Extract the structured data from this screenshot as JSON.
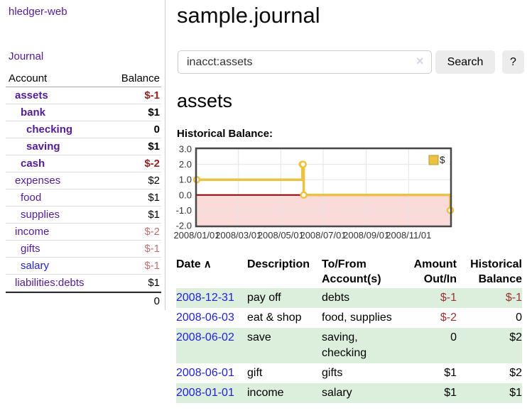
{
  "app": {
    "title": "hledger-web"
  },
  "sidebar": {
    "journal_link": "Journal",
    "table": {
      "account_header": "Account",
      "balance_header": "Balance",
      "rows": [
        {
          "account": "assets",
          "balance": "$-1",
          "depth": 0,
          "bold": true,
          "balance_style": "negative-strong"
        },
        {
          "account": "bank",
          "balance": "$1",
          "depth": 1,
          "bold": true,
          "balance_style": "normal"
        },
        {
          "account": "checking",
          "balance": "0",
          "depth": 2,
          "bold": true,
          "balance_style": "normal"
        },
        {
          "account": "saving",
          "balance": "$1",
          "depth": 2,
          "bold": true,
          "balance_style": "normal"
        },
        {
          "account": "cash",
          "balance": "$-2",
          "depth": 1,
          "bold": true,
          "balance_style": "negative-strong"
        },
        {
          "account": "expenses",
          "balance": "$2",
          "depth": 0,
          "bold": false,
          "balance_style": "normal"
        },
        {
          "account": "food",
          "balance": "$1",
          "depth": 1,
          "bold": false,
          "balance_style": "normal"
        },
        {
          "account": "supplies",
          "balance": "$1",
          "depth": 1,
          "bold": false,
          "balance_style": "normal"
        },
        {
          "account": "income",
          "balance": "$-2",
          "depth": 0,
          "bold": false,
          "balance_style": "negative-muted"
        },
        {
          "account": "gifts",
          "balance": "$-1",
          "depth": 1,
          "bold": false,
          "balance_style": "negative-muted"
        },
        {
          "account": "salary",
          "balance": "$-1",
          "depth": 1,
          "bold": false,
          "balance_style": "negative-muted"
        },
        {
          "account": "liabilities:debts",
          "balance": "$1",
          "depth": 0,
          "bold": false,
          "balance_style": "normal"
        }
      ],
      "total": "0"
    }
  },
  "header": {
    "title": "sample.journal"
  },
  "search": {
    "value": "inacct:assets",
    "clear_icon": "×",
    "button_label": "Search",
    "help_label": "?"
  },
  "account_page": {
    "heading": "assets",
    "chart_label": "Historical Balance:"
  },
  "chart_data": {
    "type": "line",
    "style": "steps",
    "title": "Historical Balance",
    "series": [
      {
        "name": "$",
        "points": [
          [
            "2008-01-01",
            1
          ],
          [
            "2008-06-01",
            2
          ],
          [
            "2008-06-02",
            2
          ],
          [
            "2008-06-03",
            0
          ],
          [
            "2008-12-31",
            -1
          ]
        ]
      }
    ],
    "x_start": "2008-01-01",
    "x_end": "2008-12-31",
    "x_ticks": [
      "2008/01/01",
      "2008/03/01",
      "2008/05/01",
      "2008/07/01",
      "2008/09/01",
      "2008/11/01"
    ],
    "y_ticks": [
      3,
      2,
      1,
      0,
      -1,
      -2
    ],
    "ylim": [
      -2,
      3
    ],
    "grid": true,
    "legend": "$",
    "legend_position": "top-right",
    "colors": {
      "line": "#edc240",
      "point_fill": "#ffffff",
      "negative_fill": "#fbdada",
      "zero_line": "#8b0000",
      "border": "#474747",
      "grid": "#e4e4e4",
      "label": "#333333",
      "legend_swatch_border": "#b8952f"
    }
  },
  "register_table": {
    "headers": {
      "date": "Date",
      "sort_icon": "∧",
      "description": "Description",
      "accounts": "To/From Account(s)",
      "amount": "Amount Out/In",
      "balance": "Historical Balance"
    },
    "rows": [
      {
        "date": "2008-12-31",
        "description": "pay off",
        "accounts": "debts",
        "amount": "$-1",
        "balance": "$-1"
      },
      {
        "date": "2008-06-03",
        "description": "eat & shop",
        "accounts": "food, supplies",
        "amount": "$-2",
        "balance": "0"
      },
      {
        "date": "2008-06-02",
        "description": "save",
        "accounts": "saving, checking",
        "amount": "0",
        "balance": "$2"
      },
      {
        "date": "2008-06-01",
        "description": "gift",
        "accounts": "gifts",
        "amount": "$1",
        "balance": "$2"
      },
      {
        "date": "2008-01-01",
        "description": "income",
        "accounts": "salary",
        "amount": "$1",
        "balance": "$1"
      }
    ]
  }
}
